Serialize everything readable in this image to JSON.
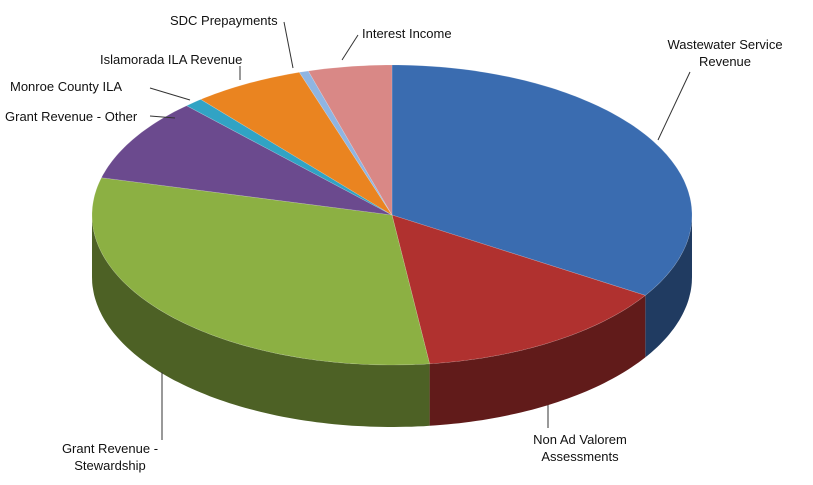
{
  "chart_data": {
    "type": "pie",
    "categories": [
      "Wastewater Service Revenue",
      "Non Ad Valorem Assessments",
      "Grant Revenue - Stewardship",
      "Grant Revenue - Other",
      "Monroe County ILA",
      "Islamorada ILA Revenue",
      "SDC Prepayments",
      "Interest Income"
    ],
    "values": [
      34,
      14,
      31,
      9,
      1,
      6,
      0.5,
      4.5
    ],
    "colors": [
      "#3a6cb0",
      "#b0312f",
      "#8cb043",
      "#6b4a8e",
      "#31a3c4",
      "#ea8420",
      "#8fb5e2",
      "#d98886"
    ]
  }
}
